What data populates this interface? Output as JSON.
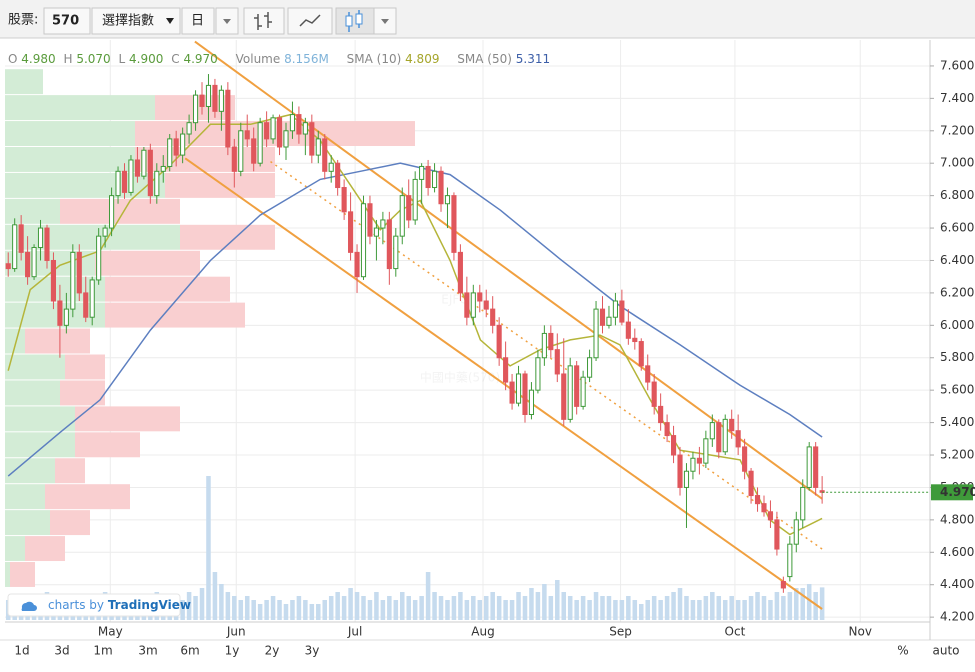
{
  "toolbar": {
    "stock_label": "股票:",
    "stock_code": "570",
    "index_select": "選擇指數",
    "interval": "日"
  },
  "chart_data": {
    "type": "candlestick",
    "legend": {
      "open_label": "O",
      "open": "4.980",
      "high_label": "H",
      "high": "5.070",
      "low_label": "L",
      "low": "4.900",
      "close_label": "C",
      "close": "4.970",
      "volume_label": "Volume",
      "volume": "8.156M",
      "sma10_label": "SMA (10)",
      "sma10": "4.809",
      "sma50_label": "SMA (50)",
      "sma50": "5.311"
    },
    "xlim": [
      -0.5,
      142.7
    ],
    "xticks": [
      {
        "value": 15.8,
        "label": "May"
      },
      {
        "value": 35.3,
        "label": "Jun"
      },
      {
        "value": 53.7,
        "label": "Jul"
      },
      {
        "value": 73.5,
        "label": "Aug"
      },
      {
        "value": 94.8,
        "label": "Sep"
      },
      {
        "value": 112.5,
        "label": "Oct"
      },
      {
        "value": 131.9,
        "label": "Nov"
      }
    ],
    "ylim": [
      4.17,
      7.76
    ],
    "yticks": [
      {
        "value": 7.6,
        "label": "7.600"
      },
      {
        "value": 7.4,
        "label": "7.400"
      },
      {
        "value": 7.2,
        "label": "7.200"
      },
      {
        "value": 7.0,
        "label": "7.000"
      },
      {
        "value": 6.8,
        "label": "6.800"
      },
      {
        "value": 6.6,
        "label": "6.600"
      },
      {
        "value": 6.4,
        "label": "6.400"
      },
      {
        "value": 6.2,
        "label": "6.200"
      },
      {
        "value": 6.0,
        "label": "6.000"
      },
      {
        "value": 5.8,
        "label": "5.800"
      },
      {
        "value": 5.6,
        "label": "5.600"
      },
      {
        "value": 5.4,
        "label": "5.400"
      },
      {
        "value": 5.2,
        "label": "5.200"
      },
      {
        "value": 5.0,
        "label": "5.000"
      },
      {
        "value": 4.8,
        "label": "4.800"
      },
      {
        "value": 4.6,
        "label": "4.600"
      },
      {
        "value": 4.4,
        "label": "4.400"
      },
      {
        "value": 4.2,
        "label": "4.200"
      }
    ],
    "grid": true,
    "colors": {
      "up": "#3f9a3a",
      "down": "#e0575c",
      "volume": "#c6dbee",
      "sma10": "#b5b53a",
      "sma50": "#5d7fc0",
      "channel": "#f0a040",
      "profile_up": "#d3ecd6",
      "profile_down": "#f9cfd0"
    },
    "ohlc": [
      [
        6.38,
        6.45,
        6.3,
        6.35
      ],
      [
        6.35,
        6.66,
        6.33,
        6.62
      ],
      [
        6.62,
        6.68,
        6.4,
        6.45
      ],
      [
        6.45,
        6.55,
        6.25,
        6.3
      ],
      [
        6.3,
        6.5,
        6.28,
        6.48
      ],
      [
        6.48,
        6.65,
        6.4,
        6.6
      ],
      [
        6.6,
        6.62,
        6.35,
        6.4
      ],
      [
        6.4,
        6.45,
        6.1,
        6.15
      ],
      [
        6.15,
        6.25,
        5.8,
        6.0
      ],
      [
        6.0,
        6.2,
        5.95,
        6.1
      ],
      [
        6.1,
        6.5,
        6.05,
        6.45
      ],
      [
        6.45,
        6.5,
        6.15,
        6.2
      ],
      [
        6.2,
        6.3,
        6.02,
        6.05
      ],
      [
        6.05,
        6.3,
        6.0,
        6.28
      ],
      [
        6.28,
        6.6,
        6.25,
        6.55
      ],
      [
        6.55,
        6.62,
        6.48,
        6.6
      ],
      [
        6.6,
        6.85,
        6.55,
        6.8
      ],
      [
        6.8,
        6.98,
        6.75,
        6.95
      ],
      [
        6.95,
        7.0,
        6.78,
        6.82
      ],
      [
        6.82,
        7.05,
        6.8,
        7.02
      ],
      [
        7.02,
        7.1,
        6.88,
        6.92
      ],
      [
        6.92,
        7.1,
        6.9,
        7.08
      ],
      [
        7.08,
        7.12,
        6.75,
        6.8
      ],
      [
        6.8,
        7.0,
        6.75,
        6.95
      ],
      [
        6.95,
        7.05,
        6.88,
        6.98
      ],
      [
        6.98,
        7.18,
        6.95,
        7.15
      ],
      [
        7.15,
        7.2,
        6.98,
        7.05
      ],
      [
        7.05,
        7.22,
        7.0,
        7.18
      ],
      [
        7.18,
        7.3,
        7.12,
        7.25
      ],
      [
        7.25,
        7.45,
        7.2,
        7.42
      ],
      [
        7.42,
        7.5,
        7.3,
        7.35
      ],
      [
        7.35,
        7.55,
        7.25,
        7.48
      ],
      [
        7.48,
        7.52,
        7.28,
        7.32
      ],
      [
        7.32,
        7.48,
        7.2,
        7.45
      ],
      [
        7.45,
        7.5,
        7.05,
        7.1
      ],
      [
        7.1,
        7.15,
        6.85,
        6.95
      ],
      [
        6.95,
        7.25,
        6.92,
        7.2
      ],
      [
        7.2,
        7.3,
        7.1,
        7.15
      ],
      [
        7.15,
        7.22,
        6.95,
        7.0
      ],
      [
        7.0,
        7.28,
        6.98,
        7.25
      ],
      [
        7.25,
        7.32,
        7.1,
        7.15
      ],
      [
        7.15,
        7.3,
        7.12,
        7.28
      ],
      [
        7.28,
        7.3,
        7.05,
        7.1
      ],
      [
        7.1,
        7.25,
        7.02,
        7.2
      ],
      [
        7.2,
        7.38,
        7.15,
        7.3
      ],
      [
        7.3,
        7.35,
        7.12,
        7.18
      ],
      [
        7.18,
        7.28,
        7.05,
        7.25
      ],
      [
        7.25,
        7.3,
        7.0,
        7.05
      ],
      [
        7.05,
        7.2,
        7.0,
        7.15
      ],
      [
        7.15,
        7.18,
        6.9,
        6.95
      ],
      [
        6.95,
        7.05,
        6.88,
        7.0
      ],
      [
        7.0,
        7.02,
        6.8,
        6.85
      ],
      [
        6.85,
        6.9,
        6.65,
        6.7
      ],
      [
        6.7,
        6.82,
        6.4,
        6.45
      ],
      [
        6.45,
        6.5,
        6.2,
        6.3
      ],
      [
        6.3,
        6.8,
        6.28,
        6.75
      ],
      [
        6.75,
        6.8,
        6.5,
        6.55
      ],
      [
        6.55,
        6.65,
        6.4,
        6.6
      ],
      [
        6.6,
        6.7,
        6.5,
        6.65
      ],
      [
        6.65,
        6.7,
        6.25,
        6.35
      ],
      [
        6.35,
        6.6,
        6.3,
        6.55
      ],
      [
        6.55,
        6.85,
        6.5,
        6.8
      ],
      [
        6.8,
        6.9,
        6.6,
        6.65
      ],
      [
        6.65,
        6.95,
        6.62,
        6.9
      ],
      [
        6.9,
        7.0,
        6.75,
        6.98
      ],
      [
        6.98,
        7.02,
        6.8,
        6.85
      ],
      [
        6.85,
        7.0,
        6.82,
        6.95
      ],
      [
        6.95,
        6.98,
        6.7,
        6.75
      ],
      [
        6.75,
        6.85,
        6.6,
        6.8
      ],
      [
        6.8,
        6.82,
        6.4,
        6.45
      ],
      [
        6.45,
        6.5,
        6.15,
        6.2
      ],
      [
        6.2,
        6.3,
        6.0,
        6.05
      ],
      [
        6.05,
        6.25,
        6.0,
        6.2
      ],
      [
        6.2,
        6.25,
        6.08,
        6.15
      ],
      [
        6.15,
        6.22,
        6.05,
        6.1
      ],
      [
        6.1,
        6.18,
        5.95,
        6.0
      ],
      [
        6.0,
        6.05,
        5.75,
        5.8
      ],
      [
        5.8,
        5.9,
        5.6,
        5.65
      ],
      [
        5.65,
        5.7,
        5.48,
        5.52
      ],
      [
        5.52,
        5.75,
        5.5,
        5.7
      ],
      [
        5.7,
        5.72,
        5.4,
        5.45
      ],
      [
        5.45,
        5.65,
        5.42,
        5.6
      ],
      [
        5.6,
        5.85,
        5.58,
        5.8
      ],
      [
        5.8,
        6.0,
        5.75,
        5.95
      ],
      [
        5.95,
        6.0,
        5.8,
        5.85
      ],
      [
        5.85,
        5.95,
        5.65,
        5.7
      ],
      [
        5.7,
        5.92,
        5.38,
        5.42
      ],
      [
        5.42,
        5.8,
        5.4,
        5.75
      ],
      [
        5.75,
        5.78,
        5.45,
        5.5
      ],
      [
        5.5,
        5.72,
        5.48,
        5.68
      ],
      [
        5.68,
        5.85,
        5.65,
        5.8
      ],
      [
        5.8,
        6.15,
        5.78,
        6.1
      ],
      [
        6.1,
        6.18,
        5.95,
        6.0
      ],
      [
        6.0,
        6.12,
        5.98,
        6.05
      ],
      [
        6.05,
        6.2,
        6.0,
        6.15
      ],
      [
        6.15,
        6.22,
        6.0,
        6.02
      ],
      [
        6.02,
        6.1,
        5.88,
        5.92
      ],
      [
        5.92,
        5.98,
        5.85,
        5.9
      ],
      [
        5.9,
        5.92,
        5.72,
        5.75
      ],
      [
        5.75,
        5.82,
        5.6,
        5.65
      ],
      [
        5.65,
        5.7,
        5.45,
        5.5
      ],
      [
        5.5,
        5.58,
        5.35,
        5.4
      ],
      [
        5.4,
        5.45,
        5.28,
        5.32
      ],
      [
        5.32,
        5.38,
        5.15,
        5.2
      ],
      [
        5.2,
        5.25,
        4.95,
        5.0
      ],
      [
        5.0,
        5.15,
        4.75,
        5.1
      ],
      [
        5.1,
        5.22,
        5.05,
        5.18
      ],
      [
        5.18,
        5.25,
        5.08,
        5.15
      ],
      [
        5.15,
        5.35,
        5.12,
        5.3
      ],
      [
        5.3,
        5.45,
        5.25,
        5.4
      ],
      [
        5.4,
        5.42,
        5.18,
        5.22
      ],
      [
        5.22,
        5.45,
        5.2,
        5.42
      ],
      [
        5.42,
        5.48,
        5.3,
        5.35
      ],
      [
        5.35,
        5.45,
        5.2,
        5.25
      ],
      [
        5.25,
        5.3,
        5.05,
        5.1
      ],
      [
        5.1,
        5.12,
        4.9,
        4.95
      ],
      [
        4.95,
        5.0,
        4.85,
        4.9
      ],
      [
        4.9,
        4.95,
        4.82,
        4.85
      ],
      [
        4.85,
        4.92,
        4.75,
        4.8
      ],
      [
        4.8,
        4.85,
        4.58,
        4.62
      ],
      [
        4.42,
        4.45,
        4.35,
        4.38
      ],
      [
        4.45,
        4.7,
        4.42,
        4.65
      ],
      [
        4.65,
        4.85,
        4.6,
        4.8
      ],
      [
        4.8,
        5.05,
        4.75,
        5.0
      ],
      [
        5.0,
        5.28,
        4.98,
        5.25
      ],
      [
        5.25,
        5.28,
        4.95,
        5.0
      ],
      [
        4.98,
        5.07,
        4.9,
        4.97
      ]
    ],
    "volume": [
      5,
      4,
      6,
      5,
      4,
      5,
      7,
      6,
      5,
      4,
      6,
      5,
      5,
      4,
      6,
      7,
      5,
      5,
      4,
      6,
      5,
      5,
      6,
      7,
      5,
      6,
      6,
      5,
      7,
      6,
      8,
      36,
      12,
      9,
      7,
      6,
      5,
      6,
      5,
      4,
      5,
      6,
      5,
      4,
      5,
      6,
      5,
      4,
      4,
      5,
      6,
      7,
      6,
      8,
      7,
      6,
      5,
      7,
      5,
      6,
      5,
      7,
      6,
      5,
      6,
      12,
      7,
      6,
      5,
      6,
      7,
      5,
      6,
      5,
      6,
      7,
      6,
      5,
      5,
      7,
      6,
      8,
      7,
      9,
      6,
      10,
      7,
      6,
      5,
      6,
      5,
      7,
      6,
      6,
      5,
      5,
      6,
      5,
      4,
      5,
      6,
      5,
      6,
      7,
      8,
      6,
      5,
      5,
      6,
      7,
      6,
      5,
      6,
      5,
      5,
      6,
      7,
      6,
      5,
      7,
      6,
      7,
      8,
      8,
      9,
      7,
      8.156
    ],
    "sma10": {
      "x": [
        0,
        3.4,
        8,
        14.2,
        18.9,
        25.1,
        31.3,
        37.5,
        43.7,
        48.3,
        52.9,
        57.6,
        60.7,
        63.8,
        68.4,
        73.1,
        77.7,
        82.4,
        87,
        91.6,
        94.7,
        99.4,
        104,
        108.7,
        113.3,
        117.9,
        121,
        126
      ],
      "values": [
        5.72,
        6.22,
        6.37,
        6.46,
        6.77,
        6.99,
        7.24,
        7.24,
        7.3,
        7.14,
        6.87,
        6.59,
        6.71,
        6.77,
        6.4,
        5.91,
        5.75,
        5.85,
        5.91,
        5.94,
        5.88,
        5.54,
        5.23,
        5.2,
        5.17,
        4.8,
        4.71,
        4.809
      ]
    },
    "sma50": {
      "x": [
        0,
        8.05,
        14.2,
        22,
        31.3,
        39,
        48.3,
        54.5,
        60.7,
        68.4,
        76.2,
        85.4,
        94.7,
        104,
        113.3,
        121,
        126
      ],
      "values": [
        5.07,
        5.34,
        5.54,
        5.97,
        6.4,
        6.68,
        6.9,
        6.95,
        7.0,
        6.93,
        6.71,
        6.41,
        6.12,
        5.88,
        5.63,
        5.45,
        5.311
      ]
    },
    "trendlines": [
      {
        "x": [
          28.9,
          126
        ],
        "y": [
          7.75,
          4.93
        ],
        "dotted": false
      },
      {
        "x": [
          27.4,
          126
        ],
        "y": [
          7.03,
          4.25
        ],
        "dotted": false
      },
      {
        "x": [
          40.6,
          126
        ],
        "y": [
          7.01,
          4.62
        ],
        "dotted": true
      }
    ],
    "volume_profile": {
      "bins": [
        7.58,
        7.42,
        7.26,
        7.1,
        6.94,
        6.78,
        6.62,
        6.46,
        6.3,
        6.14,
        5.98,
        5.82,
        5.66,
        5.5,
        5.34,
        5.18,
        5.02,
        4.86,
        4.7,
        4.54,
        4.38
      ],
      "up": [
        38,
        150,
        130,
        130,
        160,
        55,
        175,
        90,
        100,
        100,
        20,
        60,
        55,
        70,
        70,
        50,
        40,
        45,
        20,
        5
      ],
      "down": [
        0,
        80,
        280,
        140,
        110,
        120,
        95,
        105,
        125,
        140,
        65,
        40,
        45,
        105,
        65,
        30,
        85,
        40,
        40,
        25
      ]
    },
    "last_price": {
      "value": 4.97,
      "label": "4.970"
    }
  },
  "watermark": {
    "brand": "EJFQ",
    "name": "中國中藥(570)"
  },
  "credit": {
    "prefix": "charts by",
    "brand": "TradingView"
  },
  "footer": {
    "ranges": [
      "1d",
      "3d",
      "1m",
      "3m",
      "6m",
      "1y",
      "2y",
      "3y"
    ],
    "percent": "%",
    "auto": "auto"
  }
}
